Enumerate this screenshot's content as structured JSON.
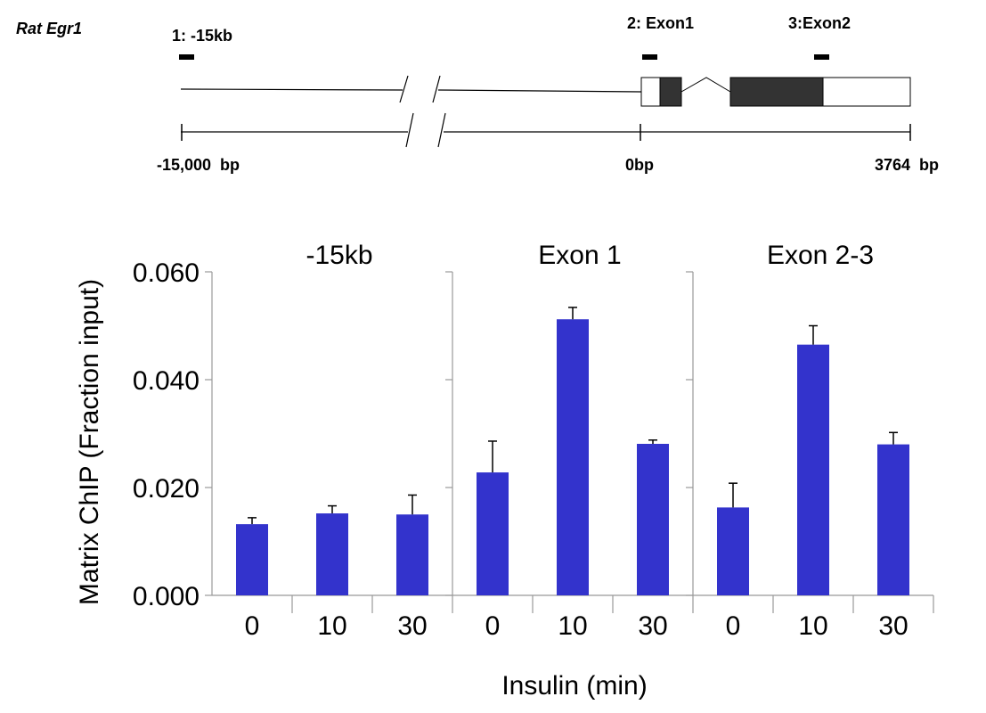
{
  "diagram": {
    "gene": "Rat Egr1",
    "sites": [
      "1: -15kb",
      "2: Exon1",
      "3:Exon2"
    ],
    "scale_labels": [
      "-15,000  bp",
      "0bp",
      "3764  bp"
    ]
  },
  "chart_data": {
    "type": "bar",
    "ylabel": "Matrix ChIP (Fraction input)",
    "xlabel": "Insulin (min)",
    "categories": [
      "0",
      "10",
      "30"
    ],
    "ylim": [
      0,
      0.06
    ],
    "yticks": [
      "0.000",
      "0.020",
      "0.040",
      "0.060"
    ],
    "bar_color": "#3333cc",
    "panels": [
      {
        "title": "-15kb",
        "values": [
          0.0132,
          0.0152,
          0.015
        ],
        "errors": [
          0.0012,
          0.0014,
          0.0036
        ]
      },
      {
        "title": "Exon 1",
        "values": [
          0.0228,
          0.0512,
          0.0281
        ],
        "errors": [
          0.0058,
          0.0022,
          0.0007
        ]
      },
      {
        "title": "Exon 2-3",
        "values": [
          0.0163,
          0.0465,
          0.028
        ],
        "errors": [
          0.0045,
          0.0035,
          0.0022
        ]
      }
    ]
  }
}
